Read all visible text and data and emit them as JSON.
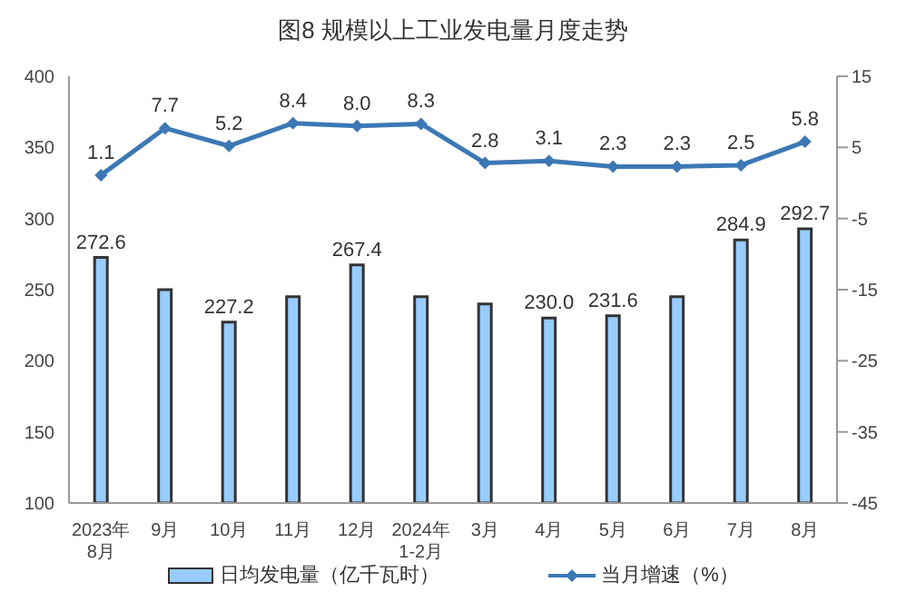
{
  "chart_data": {
    "type": "bar",
    "title": "图8  规模以上工业发电量月度走势",
    "categories": [
      "2023年\n8月",
      "9月",
      "10月",
      "11月",
      "12月",
      "2024年\n1-2月",
      "3月",
      "4月",
      "5月",
      "6月",
      "7月",
      "8月"
    ],
    "series": [
      {
        "name": "日均发电量（亿千瓦时）",
        "color": "#99ccff",
        "values": [
          272.6,
          250,
          227.2,
          245,
          267.4,
          245,
          240,
          230.0,
          231.6,
          245,
          284.9,
          292.7
        ],
        "value_labels": [
          "272.6",
          null,
          "227.2",
          null,
          "267.4",
          null,
          null,
          "230.0",
          "231.6",
          null,
          "284.9",
          "292.7"
        ]
      },
      {
        "name": "当月增速（%）",
        "type": "line",
        "axis": "y2",
        "color": "#3c78b4",
        "values": [
          1.1,
          7.7,
          5.2,
          8.4,
          8.0,
          8.3,
          2.8,
          3.1,
          2.3,
          2.3,
          2.5,
          5.8
        ],
        "value_labels": [
          "1.1",
          "7.7",
          "5.2",
          "8.4",
          "8.0",
          "8.3",
          "2.8",
          "3.1",
          "2.3",
          "2.3",
          "2.5",
          "5.8"
        ]
      }
    ],
    "ylim": [
      100,
      400
    ],
    "yticks": [
      100,
      150,
      200,
      250,
      300,
      350,
      400
    ],
    "y2lim": [
      -45,
      15
    ],
    "y2ticks": [
      -45,
      -35,
      -25,
      -15,
      -5,
      5,
      15
    ],
    "marker": "diamond",
    "legend": "bottom",
    "grid": false
  }
}
